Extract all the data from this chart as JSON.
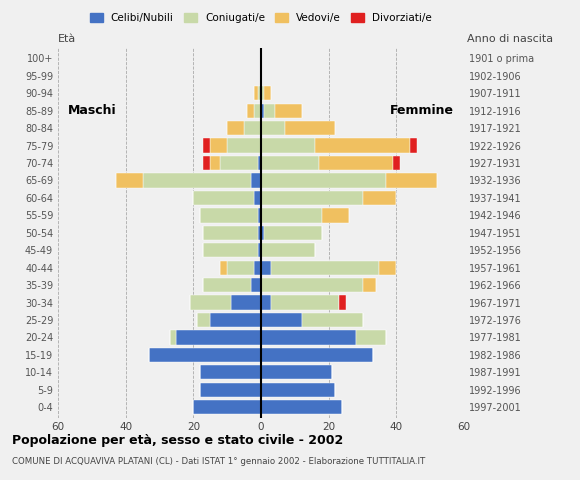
{
  "age_groups": [
    "0-4",
    "5-9",
    "10-14",
    "15-19",
    "20-24",
    "25-29",
    "30-34",
    "35-39",
    "40-44",
    "45-49",
    "50-54",
    "55-59",
    "60-64",
    "65-69",
    "70-74",
    "75-79",
    "80-84",
    "85-89",
    "90-94",
    "95-99",
    "100+"
  ],
  "birth_years": [
    "1997-2001",
    "1992-1996",
    "1987-1991",
    "1982-1986",
    "1977-1981",
    "1972-1976",
    "1967-1971",
    "1962-1966",
    "1957-1961",
    "1952-1956",
    "1947-1951",
    "1942-1946",
    "1937-1941",
    "1932-1936",
    "1927-1931",
    "1922-1926",
    "1917-1921",
    "1912-1916",
    "1907-1911",
    "1902-1906",
    "1901 o prima"
  ],
  "males": {
    "celibinubili": [
      20,
      18,
      18,
      33,
      25,
      15,
      9,
      3,
      2,
      1,
      1,
      1,
      2,
      3,
      1,
      0,
      0,
      0,
      0,
      0,
      0
    ],
    "coniugati": [
      0,
      0,
      0,
      0,
      2,
      4,
      12,
      14,
      8,
      16,
      16,
      17,
      18,
      32,
      11,
      10,
      5,
      2,
      1,
      0,
      0
    ],
    "vedovi": [
      0,
      0,
      0,
      0,
      0,
      0,
      0,
      0,
      2,
      0,
      0,
      0,
      0,
      8,
      3,
      5,
      5,
      2,
      1,
      0,
      0
    ],
    "divorziati": [
      0,
      0,
      0,
      0,
      0,
      0,
      0,
      0,
      0,
      0,
      0,
      0,
      0,
      0,
      2,
      2,
      0,
      0,
      0,
      0,
      0
    ]
  },
  "females": {
    "celibinubili": [
      24,
      22,
      21,
      33,
      28,
      12,
      3,
      0,
      3,
      0,
      1,
      0,
      0,
      0,
      0,
      0,
      0,
      1,
      0,
      0,
      0
    ],
    "coniugati": [
      0,
      0,
      0,
      0,
      9,
      18,
      20,
      30,
      32,
      16,
      17,
      18,
      30,
      37,
      17,
      16,
      7,
      3,
      1,
      0,
      0
    ],
    "vedovi": [
      0,
      0,
      0,
      0,
      0,
      0,
      0,
      4,
      5,
      0,
      0,
      8,
      10,
      15,
      22,
      28,
      15,
      8,
      2,
      0,
      0
    ],
    "divorziati": [
      0,
      0,
      0,
      0,
      0,
      0,
      2,
      0,
      0,
      0,
      0,
      0,
      0,
      0,
      2,
      2,
      0,
      0,
      0,
      0,
      0
    ]
  },
  "colors": {
    "celibinubili": "#4472c4",
    "coniugati": "#c8d9a8",
    "vedovi": "#f0c060",
    "divorziati": "#e02020"
  },
  "xlim": 60,
  "title": "Popolazione per età, sesso e stato civile - 2002",
  "subtitle": "COMUNE DI ACQUAVIVA PLATANI (CL) - Dati ISTAT 1° gennaio 2002 - Elaborazione TUTTITALIA.IT",
  "legend_labels": [
    "Celibi/Nubili",
    "Coniugati/e",
    "Vedovi/e",
    "Divorziati/e"
  ],
  "bg_color": "#f0f0f0"
}
